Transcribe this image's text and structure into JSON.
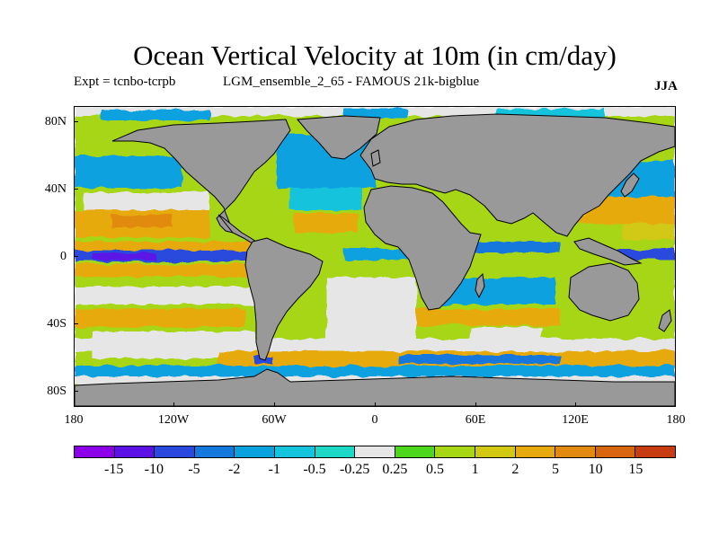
{
  "title": "Ocean Vertical Velocity at 10m (in cm/day)",
  "subtitle_left": "Expt = tcnbo-tcrpb",
  "subtitle_mid": "LGM_ensemble_2_65 - FAMOUS 21k-bigblue",
  "season": "JJA",
  "lat_labels": [
    "80N",
    "40N",
    "0",
    "40S",
    "80S"
  ],
  "lon_labels": [
    "180",
    "120W",
    "60W",
    "0",
    "60E",
    "120E",
    "180"
  ],
  "colorbar": {
    "colors": [
      "#8b00e8",
      "#5c12e6",
      "#2a48dd",
      "#1478dd",
      "#0aa1df",
      "#14c3dc",
      "#1cd8c4",
      "#e6e6e6",
      "#4cd61c",
      "#a6d614",
      "#d2c812",
      "#e6aa0e",
      "#e28a10",
      "#d8660e",
      "#c83c12"
    ],
    "labels": [
      "-15",
      "-10",
      "-5",
      "-2",
      "-1",
      "-0.5",
      "-0.25",
      "0.25",
      "0.5",
      "1",
      "2",
      "5",
      "10",
      "15"
    ]
  },
  "land_color": "#999999"
}
